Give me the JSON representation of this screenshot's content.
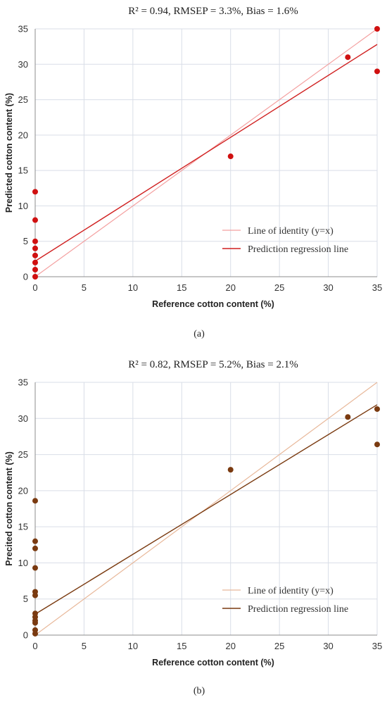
{
  "chart_data": [
    {
      "type": "scatter",
      "title": "R² = 0.94, RMSEP = 3.3%, Bias = 1.6%",
      "caption": "(a)",
      "xlabel": "Reference cotton content (%)",
      "ylabel": "Predicted cotton content (%)",
      "xlim": [
        0,
        35
      ],
      "ylim": [
        0,
        35
      ],
      "xticks": [
        0,
        5,
        10,
        15,
        20,
        25,
        30,
        35
      ],
      "yticks": [
        0,
        5,
        10,
        15,
        20,
        25,
        30,
        35
      ],
      "grid": true,
      "legend_position": "bottom-right",
      "point_color": "#d01010",
      "points": [
        {
          "x": 0,
          "y": 0
        },
        {
          "x": 0,
          "y": 1
        },
        {
          "x": 0,
          "y": 2
        },
        {
          "x": 0,
          "y": 3
        },
        {
          "x": 0,
          "y": 4
        },
        {
          "x": 0,
          "y": 5
        },
        {
          "x": 0,
          "y": 8
        },
        {
          "x": 0,
          "y": 12
        },
        {
          "x": 20,
          "y": 17
        },
        {
          "x": 32,
          "y": 31
        },
        {
          "x": 35,
          "y": 35
        },
        {
          "x": 35,
          "y": 29
        }
      ],
      "series": [
        {
          "name": "Line of identity (y=x)",
          "color": "#f4a0a0",
          "x": [
            0,
            35
          ],
          "y": [
            0,
            35
          ]
        },
        {
          "name": "Prediction regression line",
          "color": "#d02020",
          "x": [
            0,
            35
          ],
          "y": [
            2.2,
            32.8
          ]
        }
      ]
    },
    {
      "type": "scatter",
      "title": "R² = 0.82, RMSEP = 5.2%, Bias = 2.1%",
      "caption": "(b)",
      "xlabel": "Reference cotton content (%)",
      "ylabel": "Precited cotton content (%)",
      "xlim": [
        0,
        35
      ],
      "ylim": [
        0,
        35
      ],
      "xticks": [
        0,
        5,
        10,
        15,
        20,
        25,
        30,
        35
      ],
      "yticks": [
        0,
        5,
        10,
        15,
        20,
        25,
        30,
        35
      ],
      "grid": true,
      "legend_position": "bottom-right",
      "point_color": "#7a3a10",
      "points": [
        {
          "x": 0,
          "y": 0.2
        },
        {
          "x": 0,
          "y": 0.7
        },
        {
          "x": 0,
          "y": 1.7
        },
        {
          "x": 0,
          "y": 2.0
        },
        {
          "x": 0,
          "y": 2.5
        },
        {
          "x": 0,
          "y": 3.0
        },
        {
          "x": 0,
          "y": 5.5
        },
        {
          "x": 0,
          "y": 6.0
        },
        {
          "x": 0,
          "y": 9.3
        },
        {
          "x": 0,
          "y": 12.0
        },
        {
          "x": 0,
          "y": 13.0
        },
        {
          "x": 0,
          "y": 18.6
        },
        {
          "x": 20,
          "y": 22.9
        },
        {
          "x": 32,
          "y": 30.2
        },
        {
          "x": 35,
          "y": 31.3
        },
        {
          "x": 35,
          "y": 26.4
        }
      ],
      "series": [
        {
          "name": "Line of identity (y=x)",
          "color": "#e8b89a",
          "x": [
            0,
            35
          ],
          "y": [
            0,
            35
          ]
        },
        {
          "name": "Prediction regression line",
          "color": "#7a3a10",
          "x": [
            0,
            35
          ],
          "y": [
            2.9,
            31.9
          ]
        }
      ]
    }
  ]
}
